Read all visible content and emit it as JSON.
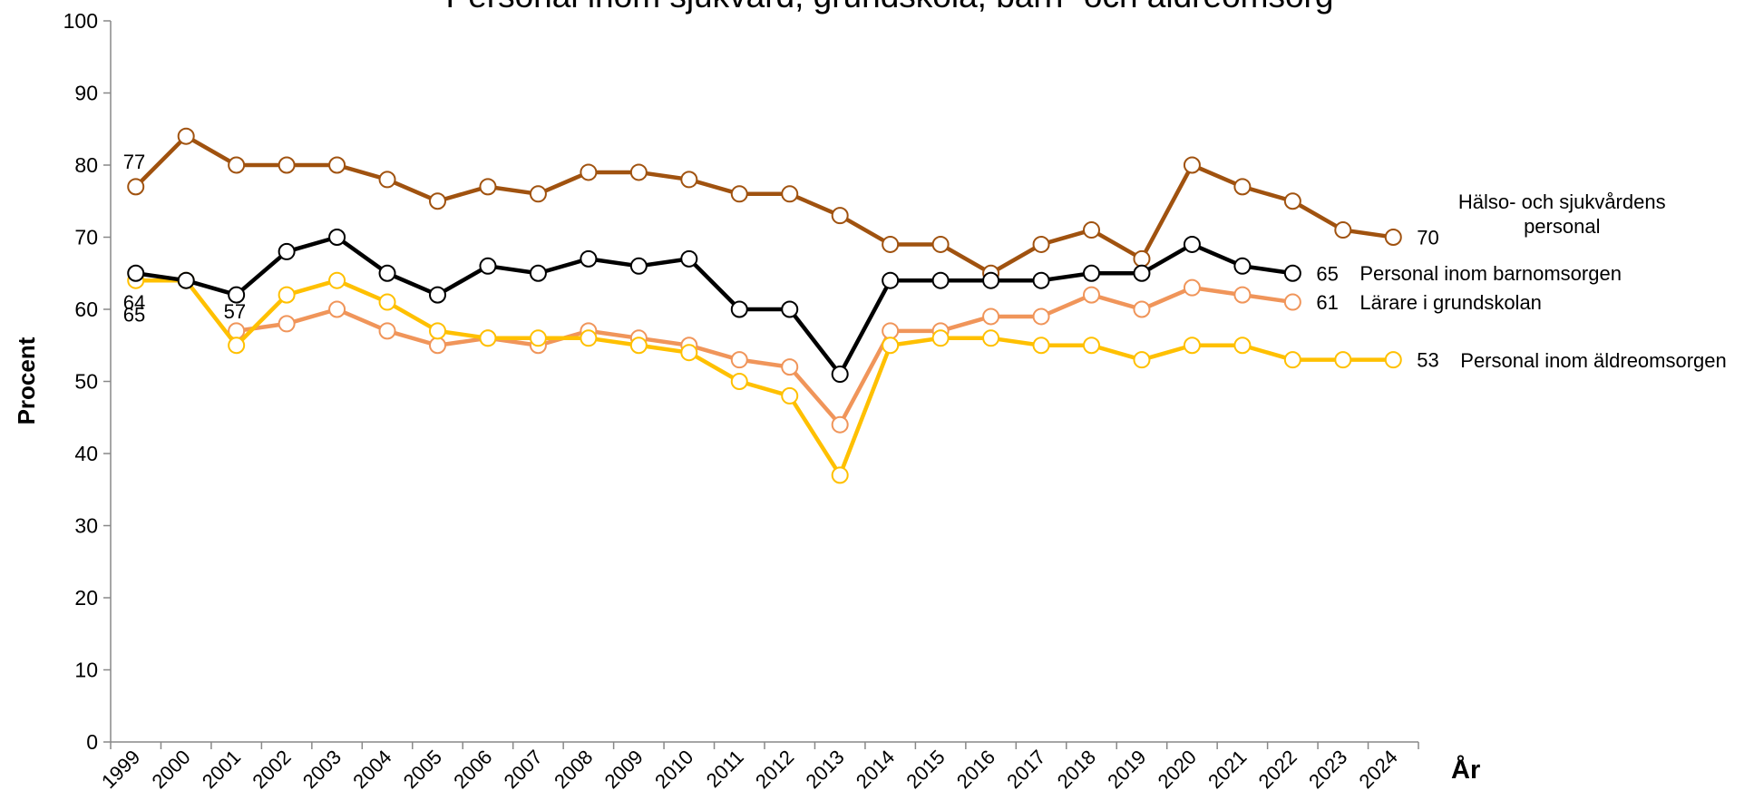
{
  "chart_data": {
    "type": "line",
    "title": "Personal inom sjukvård, grundskola, barn- och äldreomsorg",
    "y_label": "Procent",
    "x_label": "År",
    "categories": [
      "1999",
      "2000",
      "2001",
      "2002",
      "2003",
      "2004",
      "2005",
      "2006",
      "2007",
      "2008",
      "2009",
      "2010",
      "2011",
      "2012",
      "2013",
      "2014",
      "2015",
      "2016",
      "2017",
      "2018",
      "2019",
      "2020",
      "2021",
      "2022",
      "2023",
      "2024"
    ],
    "series": [
      {
        "name": "Hälso- och sjukvårdens personal",
        "color": "#a0520f",
        "values": [
          77,
          84,
          80,
          80,
          80,
          78,
          75,
          77,
          76,
          79,
          79,
          78,
          76,
          76,
          73,
          69,
          69,
          65,
          69,
          71,
          67,
          80,
          77,
          75,
          71,
          70
        ]
      },
      {
        "name": "Lärare i grundskolan",
        "color": "#f0955a",
        "values": [
          null,
          null,
          57,
          58,
          60,
          57,
          55,
          56,
          55,
          57,
          56,
          55,
          53,
          52,
          44,
          57,
          57,
          59,
          59,
          62,
          60,
          63,
          62,
          61,
          null,
          null
        ]
      },
      {
        "name": "Personal inom äldreomsorgen",
        "color": "#ffc000",
        "values": [
          64,
          64,
          55,
          62,
          64,
          61,
          57,
          56,
          56,
          56,
          55,
          54,
          50,
          48,
          37,
          55,
          56,
          56,
          55,
          55,
          53,
          55,
          55,
          53,
          53,
          53
        ]
      },
      {
        "name": "Personal inom barnomsorgen",
        "color": "#000000",
        "values": [
          65,
          64,
          62,
          68,
          70,
          65,
          62,
          66,
          65,
          67,
          66,
          67,
          60,
          60,
          51,
          64,
          64,
          64,
          64,
          65,
          65,
          69,
          66,
          65,
          null,
          null
        ]
      }
    ],
    "ylim": [
      0,
      100
    ],
    "yticks": [
      0,
      10,
      20,
      30,
      40,
      50,
      60,
      70,
      80,
      90,
      100
    ],
    "grid": false
  }
}
